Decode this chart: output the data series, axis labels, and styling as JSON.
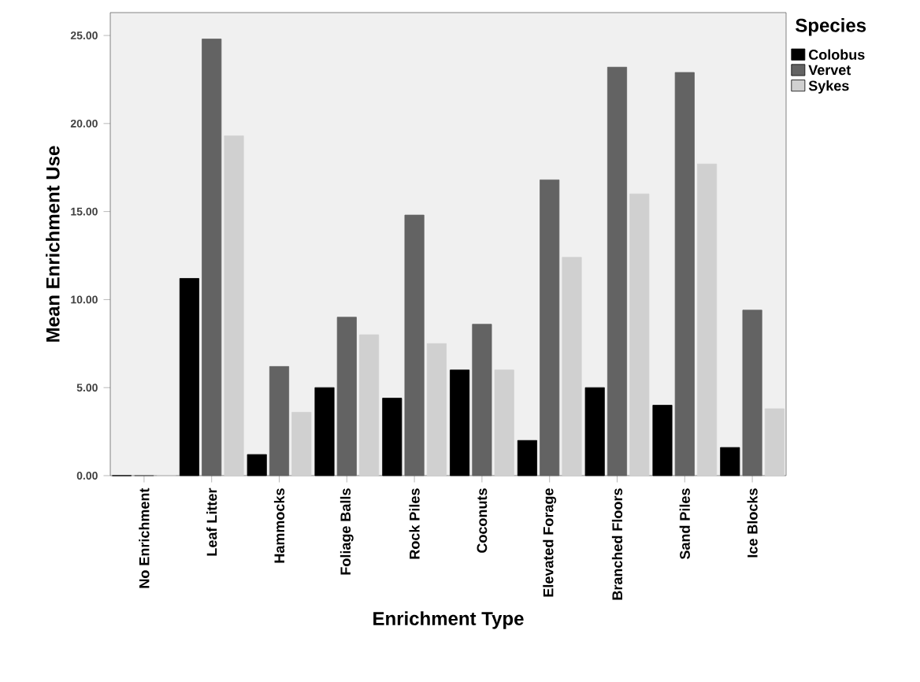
{
  "chart_data": {
    "type": "bar",
    "xlabel": "Enrichment Type",
    "ylabel": "Mean Enrichment Use",
    "legend_title": "Species",
    "legend": "right",
    "categories": [
      "No Enrichment",
      "Leaf Litter",
      "Hammocks",
      "Foliage Balls",
      "Rock Piles",
      "Coconuts",
      "Elevated Forage",
      "Branched Floors",
      "Sand Piles",
      "Ice Blocks"
    ],
    "series": [
      {
        "name": "Colobus",
        "color": "#000000",
        "values": [
          0,
          11.2,
          1.2,
          5.0,
          4.4,
          6.0,
          2.0,
          5.0,
          4.0,
          1.6
        ]
      },
      {
        "name": "Vervet",
        "color": "#636363",
        "values": [
          0,
          24.8,
          6.2,
          9.0,
          14.8,
          8.6,
          16.8,
          23.2,
          22.9,
          9.4
        ]
      },
      {
        "name": "Sykes",
        "color": "#d0d0d0",
        "values": [
          0,
          19.3,
          3.6,
          8.0,
          7.5,
          6.0,
          12.4,
          16.0,
          17.7,
          3.8
        ]
      }
    ],
    "ylim": [
      0,
      26.3
    ],
    "yticks": [
      {
        "value": 0,
        "label": "0.00"
      },
      {
        "value": 5,
        "label": "5.00"
      },
      {
        "value": 10,
        "label": "10.00"
      },
      {
        "value": 15,
        "label": "15.00"
      },
      {
        "value": 20,
        "label": "20.00"
      },
      {
        "value": 25,
        "label": "25.00"
      }
    ]
  }
}
